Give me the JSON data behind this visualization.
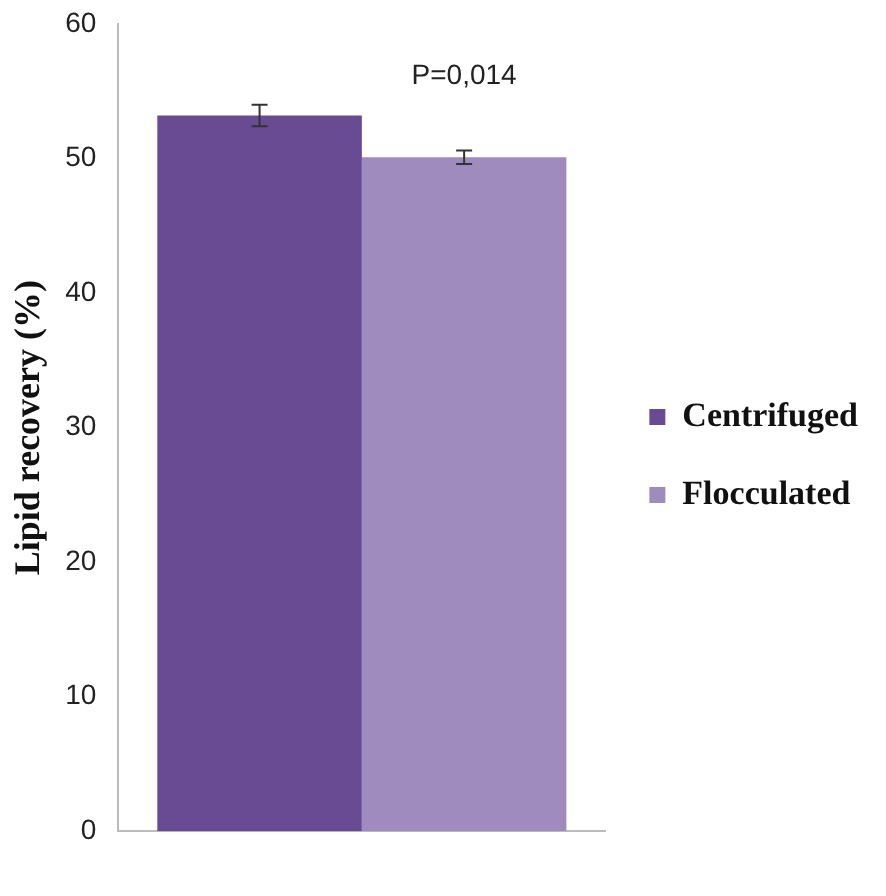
{
  "chart_data": {
    "type": "bar",
    "ylabel": "Lipid recovery (%)",
    "categories": [
      null
    ],
    "series": [
      {
        "name": "Centrifuged",
        "color": "#694b93",
        "values": [
          53.2
        ],
        "errors": [
          0.8
        ]
      },
      {
        "name": "Flocculated",
        "color": "#a08bbf",
        "values": [
          50.1
        ],
        "errors": [
          0.5
        ]
      }
    ],
    "ylim": [
      0,
      60
    ],
    "yticks": [
      0,
      10,
      20,
      30,
      40,
      50,
      60
    ],
    "grid": false,
    "legend": "right",
    "annotations": [
      "P=0,014"
    ]
  }
}
